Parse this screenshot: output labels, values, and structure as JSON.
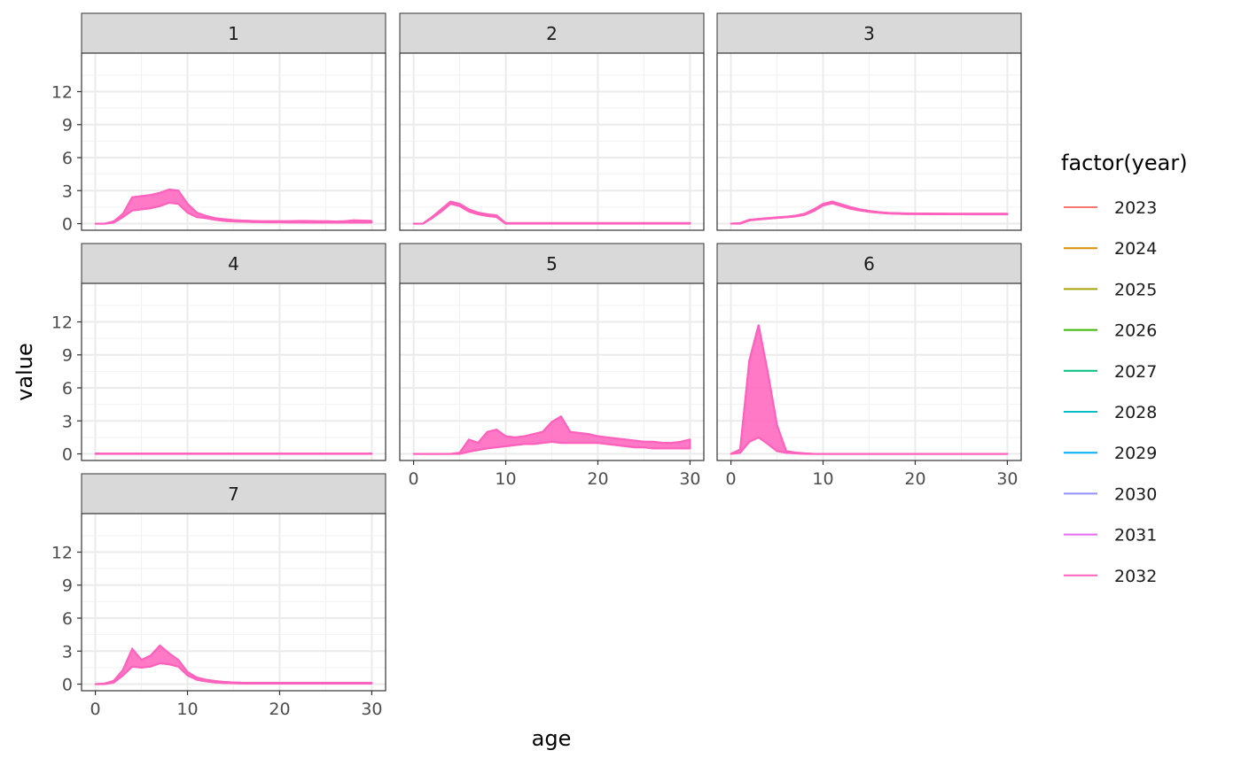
{
  "chart_data": {
    "type": "line",
    "facet_variable": "",
    "xlabel": "age",
    "ylabel": "value",
    "xlim": [
      -1.5,
      31.5
    ],
    "ylim": [
      -0.6,
      15.5
    ],
    "x_ticks": [
      0,
      10,
      20,
      30
    ],
    "y_ticks": [
      0,
      3,
      6,
      9,
      12
    ],
    "grid": true,
    "legend": {
      "title": "factor(year)",
      "placement": "right",
      "entries": [
        {
          "label": "2023",
          "color": "#F8766D"
        },
        {
          "label": "2024",
          "color": "#D89000"
        },
        {
          "label": "2025",
          "color": "#A3A500"
        },
        {
          "label": "2026",
          "color": "#39B600"
        },
        {
          "label": "2027",
          "color": "#00BF7D"
        },
        {
          "label": "2028",
          "color": "#00BFC4"
        },
        {
          "label": "2029",
          "color": "#00B0F6"
        },
        {
          "label": "2030",
          "color": "#9590FF"
        },
        {
          "label": "2031",
          "color": "#E76BF3"
        },
        {
          "label": "2032",
          "color": "#FF62BC"
        }
      ]
    },
    "facets": [
      {
        "label": "1",
        "lower": [
          0,
          0,
          0.1,
          0.6,
          1.2,
          1.3,
          1.4,
          1.6,
          1.9,
          1.8,
          1.0,
          0.6,
          0.5,
          0.35,
          0.25,
          0.2,
          0.18,
          0.15,
          0.13,
          0.12,
          0.12,
          0.11,
          0.11,
          0.1,
          0.1,
          0.1,
          0.1,
          0.1,
          0.1,
          0.1,
          0.1
        ],
        "upper": [
          0,
          0,
          0.2,
          0.9,
          2.4,
          2.5,
          2.6,
          2.8,
          3.1,
          3.0,
          1.8,
          1.0,
          0.7,
          0.5,
          0.4,
          0.32,
          0.28,
          0.25,
          0.22,
          0.22,
          0.22,
          0.22,
          0.25,
          0.25,
          0.22,
          0.22,
          0.2,
          0.22,
          0.3,
          0.28,
          0.25
        ]
      },
      {
        "label": "2",
        "lower": [
          0,
          0,
          0.5,
          1.1,
          1.8,
          1.6,
          1.1,
          0.85,
          0.7,
          0.6,
          0,
          0,
          0,
          0,
          0,
          0,
          0,
          0,
          0,
          0,
          0,
          0,
          0,
          0,
          0,
          0,
          0,
          0,
          0,
          0,
          0
        ],
        "upper": [
          0,
          0,
          0.6,
          1.3,
          2.0,
          1.8,
          1.3,
          1.0,
          0.85,
          0.75,
          0.05,
          0.05,
          0.05,
          0.05,
          0.05,
          0.05,
          0.05,
          0.05,
          0.05,
          0.05,
          0.05,
          0.05,
          0.05,
          0.05,
          0.05,
          0.05,
          0.05,
          0.05,
          0.05,
          0.05,
          0.05
        ]
      },
      {
        "label": "3",
        "lower": [
          0,
          0,
          0.3,
          0.38,
          0.45,
          0.52,
          0.58,
          0.65,
          0.8,
          1.15,
          1.65,
          1.85,
          1.6,
          1.35,
          1.2,
          1.08,
          1.0,
          0.93,
          0.9,
          0.88,
          0.87,
          0.87,
          0.86,
          0.86,
          0.86,
          0.86,
          0.85,
          0.85,
          0.85,
          0.85,
          0.85
        ],
        "upper": [
          0,
          0.05,
          0.35,
          0.43,
          0.5,
          0.57,
          0.63,
          0.72,
          0.9,
          1.3,
          1.8,
          2.0,
          1.75,
          1.5,
          1.3,
          1.15,
          1.05,
          0.98,
          0.95,
          0.93,
          0.92,
          0.92,
          0.91,
          0.91,
          0.9,
          0.9,
          0.9,
          0.9,
          0.9,
          0.9,
          0.9
        ]
      },
      {
        "label": "4",
        "lower": [
          0,
          0,
          0,
          0,
          0,
          0,
          0,
          0,
          0,
          0,
          0,
          0,
          0,
          0,
          0,
          0,
          0,
          0,
          0,
          0,
          0,
          0,
          0,
          0,
          0,
          0,
          0,
          0,
          0,
          0,
          0
        ],
        "upper": [
          0.03,
          0.03,
          0.03,
          0.03,
          0.03,
          0.03,
          0.03,
          0.03,
          0.03,
          0.03,
          0.03,
          0.03,
          0.03,
          0.03,
          0.03,
          0.03,
          0.03,
          0.03,
          0.03,
          0.03,
          0.03,
          0.03,
          0.03,
          0.03,
          0.03,
          0.03,
          0.03,
          0.03,
          0.03,
          0.03,
          0.03
        ]
      },
      {
        "label": "5",
        "lower": [
          0,
          0,
          0,
          0,
          0,
          0,
          0.2,
          0.35,
          0.5,
          0.6,
          0.7,
          0.8,
          0.9,
          0.9,
          1.0,
          1.1,
          1.0,
          1.0,
          1.0,
          1.0,
          1.0,
          0.9,
          0.8,
          0.7,
          0.6,
          0.6,
          0.5,
          0.5,
          0.5,
          0.5,
          0.5
        ],
        "upper": [
          0,
          0,
          0,
          0,
          0,
          0.1,
          1.3,
          1.0,
          2.0,
          2.2,
          1.6,
          1.5,
          1.6,
          1.8,
          2.0,
          2.9,
          3.4,
          2.0,
          1.9,
          1.8,
          1.6,
          1.5,
          1.4,
          1.3,
          1.2,
          1.1,
          1.1,
          1.0,
          1.0,
          1.1,
          1.3
        ]
      },
      {
        "label": "6",
        "lower": [
          0,
          0.1,
          1.1,
          1.5,
          0.9,
          0.25,
          0.1,
          0.05,
          0,
          0,
          0,
          0,
          0,
          0,
          0,
          0,
          0,
          0,
          0,
          0,
          0,
          0,
          0,
          0,
          0,
          0,
          0,
          0,
          0,
          0,
          0
        ],
        "upper": [
          0,
          0.4,
          8.5,
          11.7,
          7.4,
          2.6,
          0.25,
          0.12,
          0.05,
          0,
          0,
          0,
          0,
          0,
          0,
          0,
          0,
          0,
          0,
          0,
          0,
          0,
          0,
          0,
          0,
          0,
          0,
          0,
          0,
          0,
          0
        ]
      },
      {
        "label": "7",
        "lower": [
          0,
          0,
          0.15,
          0.8,
          1.6,
          1.5,
          1.6,
          1.9,
          1.8,
          1.6,
          0.8,
          0.4,
          0.25,
          0.15,
          0.1,
          0.08,
          0.06,
          0.05,
          0.05,
          0.05,
          0.05,
          0.05,
          0.05,
          0.05,
          0.05,
          0.05,
          0.05,
          0.05,
          0.05,
          0.05,
          0.05
        ],
        "upper": [
          0,
          0.05,
          0.3,
          1.3,
          3.2,
          2.2,
          2.6,
          3.5,
          2.8,
          2.2,
          1.1,
          0.6,
          0.4,
          0.28,
          0.2,
          0.15,
          0.12,
          0.12,
          0.12,
          0.12,
          0.12,
          0.12,
          0.12,
          0.12,
          0.12,
          0.12,
          0.12,
          0.12,
          0.12,
          0.12,
          0.12
        ]
      }
    ]
  }
}
